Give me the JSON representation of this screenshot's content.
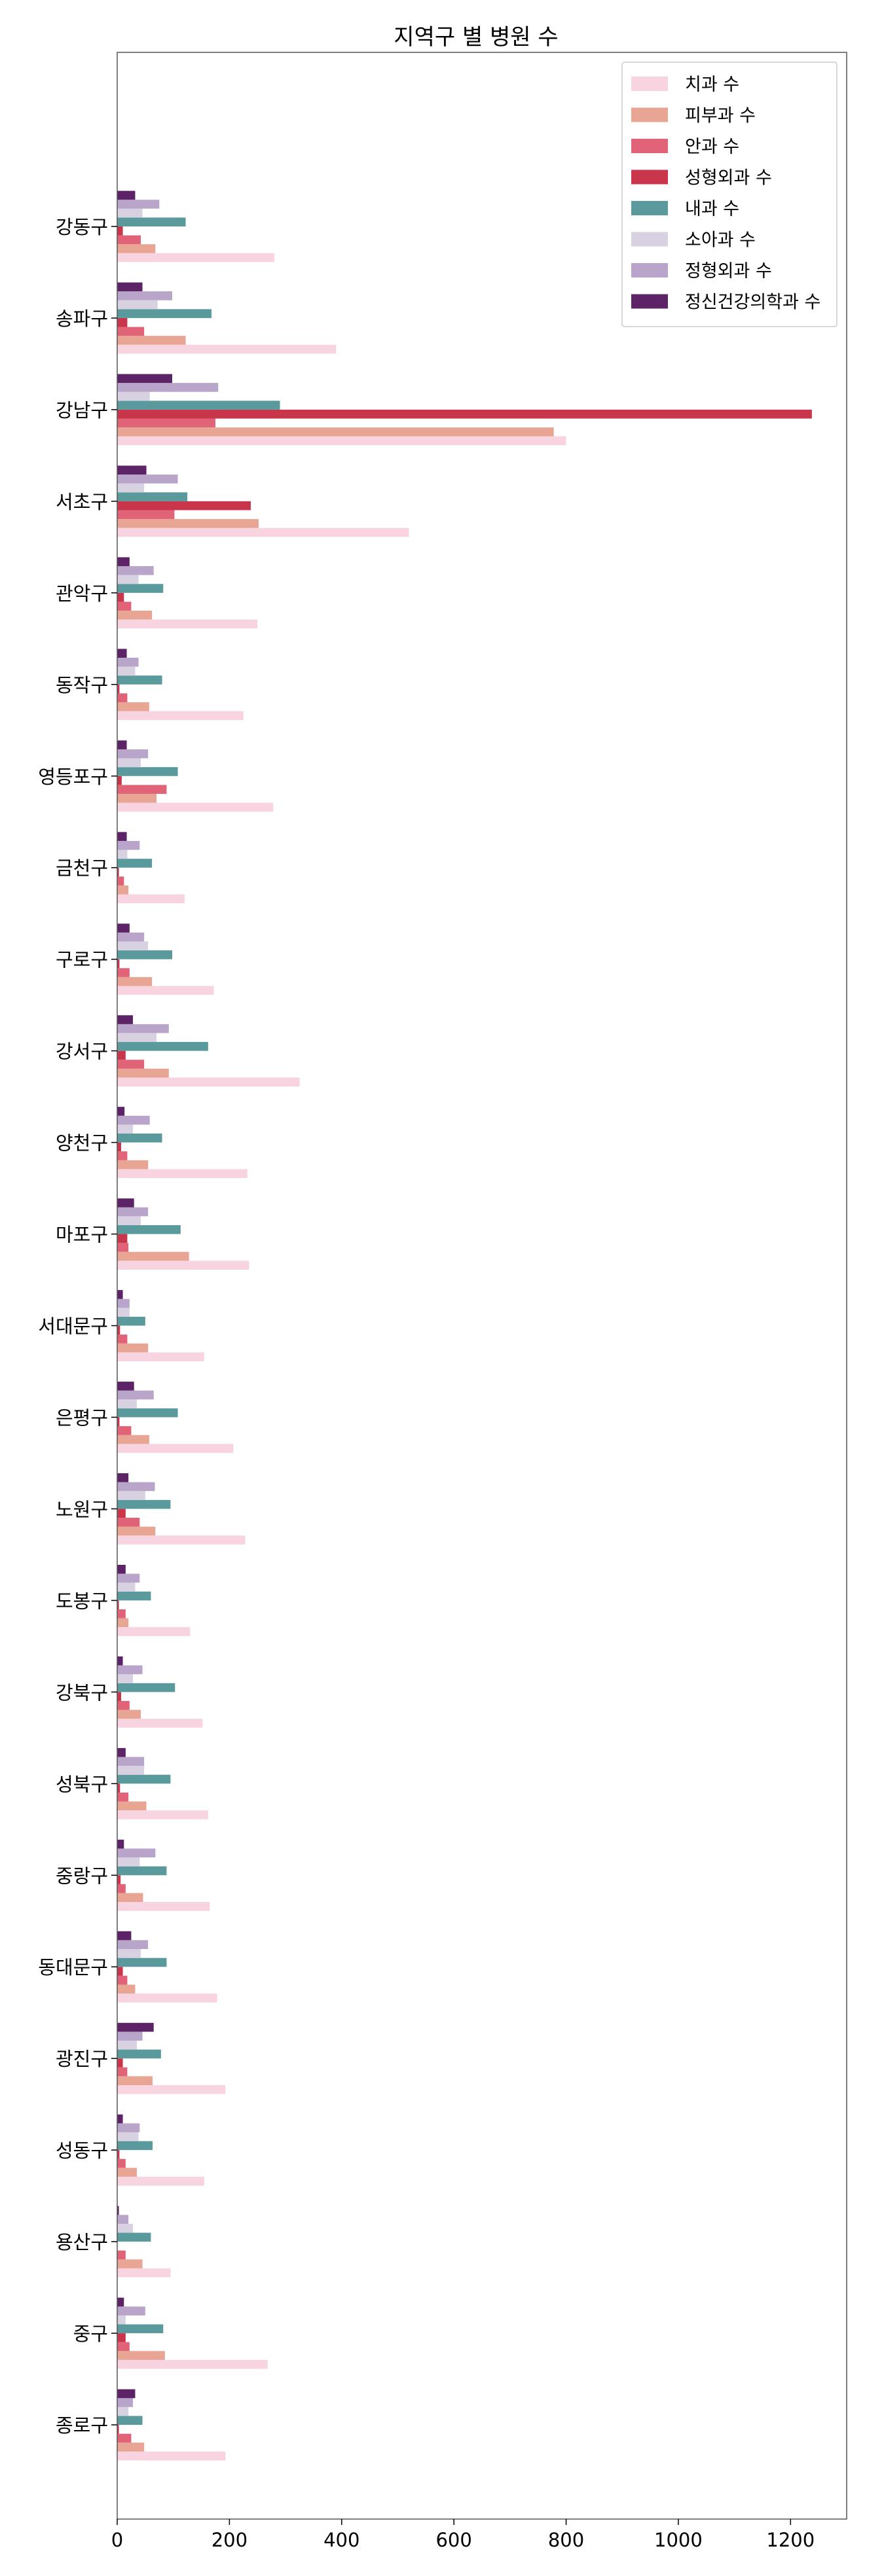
{
  "chart_data": {
    "type": "bar",
    "orientation": "horizontal",
    "title": "지역구 별 병원 수",
    "xlabel": "",
    "ylabel": "",
    "xlim": [
      0,
      1300
    ],
    "xticks": [
      0,
      200,
      400,
      600,
      800,
      1000,
      1200
    ],
    "grid": false,
    "legend_position": "top-right",
    "categories": [
      "강동구",
      "송파구",
      "강남구",
      "서초구",
      "관악구",
      "동작구",
      "영등포구",
      "금천구",
      "구로구",
      "강서구",
      "양천구",
      "마포구",
      "서대문구",
      "은평구",
      "노원구",
      "도봉구",
      "강북구",
      "성북구",
      "중랑구",
      "동대문구",
      "광진구",
      "성동구",
      "용산구",
      "중구",
      "종로구"
    ],
    "series": [
      {
        "name": "치과 수",
        "color": "#f7d4e0",
        "values": [
          280,
          390,
          800,
          520,
          250,
          225,
          278,
          120,
          172,
          325,
          232,
          235,
          155,
          207,
          228,
          130,
          152,
          162,
          165,
          178,
          193,
          155,
          95,
          268,
          193
        ]
      },
      {
        "name": "피부과 수",
        "color": "#e9a593",
        "values": [
          68,
          122,
          778,
          252,
          62,
          57,
          70,
          20,
          62,
          92,
          55,
          128,
          55,
          57,
          68,
          20,
          42,
          52,
          46,
          32,
          63,
          35,
          45,
          85,
          48
        ]
      },
      {
        "name": "안과 수",
        "color": "#e06377",
        "values": [
          42,
          48,
          175,
          102,
          25,
          18,
          88,
          12,
          22,
          48,
          18,
          20,
          18,
          25,
          40,
          15,
          22,
          20,
          15,
          18,
          18,
          15,
          15,
          22,
          25
        ]
      },
      {
        "name": "성형외과 수",
        "color": "#c9364c",
        "values": [
          10,
          18,
          1238,
          238,
          12,
          4,
          8,
          3,
          4,
          15,
          7,
          18,
          5,
          4,
          15,
          3,
          7,
          5,
          6,
          10,
          10,
          4,
          0,
          15,
          3
        ]
      },
      {
        "name": "내과 수",
        "color": "#5b9a9c",
        "values": [
          122,
          168,
          290,
          125,
          82,
          80,
          108,
          62,
          98,
          162,
          80,
          113,
          50,
          108,
          95,
          60,
          103,
          95,
          88,
          88,
          78,
          63,
          60,
          82,
          45
        ]
      },
      {
        "name": "소아과 수",
        "color": "#d7d1e1",
        "values": [
          45,
          72,
          58,
          48,
          38,
          32,
          42,
          18,
          55,
          70,
          28,
          42,
          22,
          35,
          50,
          32,
          28,
          48,
          40,
          42,
          35,
          38,
          28,
          15,
          20
        ]
      },
      {
        "name": "정형외과 수",
        "color": "#b9a5c9",
        "values": [
          75,
          98,
          180,
          108,
          65,
          38,
          55,
          40,
          48,
          92,
          58,
          55,
          22,
          65,
          67,
          40,
          45,
          48,
          68,
          55,
          45,
          40,
          20,
          50,
          28
        ]
      },
      {
        "name": "정신건강의학과 수",
        "color": "#5c2467",
        "values": [
          32,
          45,
          98,
          52,
          22,
          17,
          17,
          17,
          22,
          28,
          13,
          30,
          10,
          30,
          20,
          15,
          10,
          15,
          12,
          25,
          65,
          10,
          3,
          12,
          32
        ]
      }
    ]
  }
}
